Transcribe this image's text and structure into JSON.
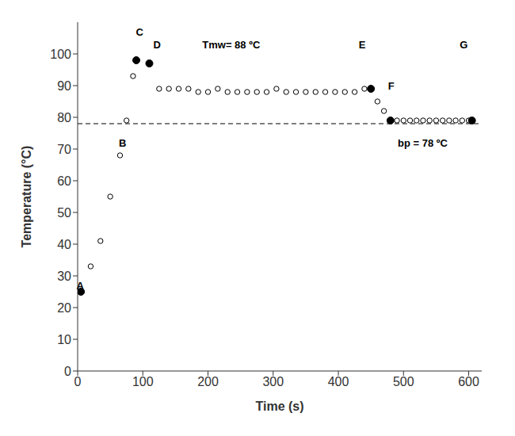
{
  "chart_data": {
    "type": "scatter",
    "title": "",
    "xlabel": "Time (s)",
    "ylabel": "Temperature (°C)",
    "xlim": [
      0,
      620
    ],
    "ylim": [
      0,
      110
    ],
    "xticks": [
      0,
      100,
      200,
      300,
      400,
      500,
      600
    ],
    "yticks": [
      0,
      10,
      20,
      30,
      40,
      50,
      60,
      70,
      80,
      90,
      100
    ],
    "grid": false,
    "series": [
      {
        "marker": "open_circle",
        "color": "black",
        "x": [
          5,
          20,
          35,
          50,
          65
        ],
        "values": [
          25,
          33,
          41,
          55,
          68
        ]
      },
      {
        "marker": "open_circle",
        "color": "black",
        "x": [
          75,
          85
        ],
        "values": [
          79,
          93
        ]
      },
      {
        "marker": "filled_circle",
        "color": "black",
        "x": [
          5
        ],
        "values": [
          25
        ]
      },
      {
        "marker": "filled_circle",
        "color": "black",
        "x": [
          90
        ],
        "values": [
          98
        ]
      },
      {
        "marker": "filled_circle",
        "color": "black",
        "x": [
          110
        ],
        "values": [
          97
        ]
      },
      {
        "marker": "open_circle",
        "color": "black",
        "x": [
          125,
          140,
          155,
          170,
          185,
          200,
          215,
          230,
          245,
          260,
          275,
          290,
          305,
          320,
          335,
          350,
          365,
          380,
          395,
          410,
          425,
          440
        ],
        "values": [
          89,
          89,
          89,
          89,
          88,
          88,
          89,
          88,
          88,
          88,
          88,
          88,
          89,
          88,
          88,
          88,
          88,
          88,
          88,
          88,
          88,
          89
        ]
      },
      {
        "marker": "filled_circle",
        "color": "black",
        "x": [
          450
        ],
        "values": [
          89
        ]
      },
      {
        "marker": "open_circle",
        "color": "black",
        "x": [
          460,
          470
        ],
        "values": [
          85,
          82
        ]
      },
      {
        "marker": "filled_circle",
        "color": "black",
        "x": [
          480
        ],
        "values": [
          79
        ]
      },
      {
        "marker": "open_circle",
        "color": "black",
        "x": [
          490,
          500,
          510,
          520,
          530,
          540,
          550,
          560,
          570,
          580,
          590,
          600
        ],
        "values": [
          79,
          79,
          79,
          79,
          79,
          79,
          79,
          79,
          79,
          79,
          79,
          79
        ]
      },
      {
        "marker": "filled_circle",
        "color": "black",
        "x": [
          605
        ],
        "values": [
          79
        ]
      }
    ],
    "reference_lines": [
      {
        "y": 78,
        "color": "black",
        "line_style": "dashed"
      }
    ],
    "annotations": [
      {
        "text": "A",
        "x": -3,
        "y": 27
      },
      {
        "text": "B",
        "x": 62,
        "y": 72
      },
      {
        "text": "C",
        "x": 88,
        "y": 107
      },
      {
        "text": "D",
        "x": 115,
        "y": 103
      },
      {
        "text": "E",
        "x": 430,
        "y": 103
      },
      {
        "text": "F",
        "x": 475,
        "y": 90
      },
      {
        "text": "G",
        "x": 585,
        "y": 103
      },
      {
        "text": "Tmw= 88 ºC",
        "x": 190,
        "y": 103
      },
      {
        "text": "bp = 78 ºC",
        "x": 490,
        "y": 72
      }
    ]
  }
}
